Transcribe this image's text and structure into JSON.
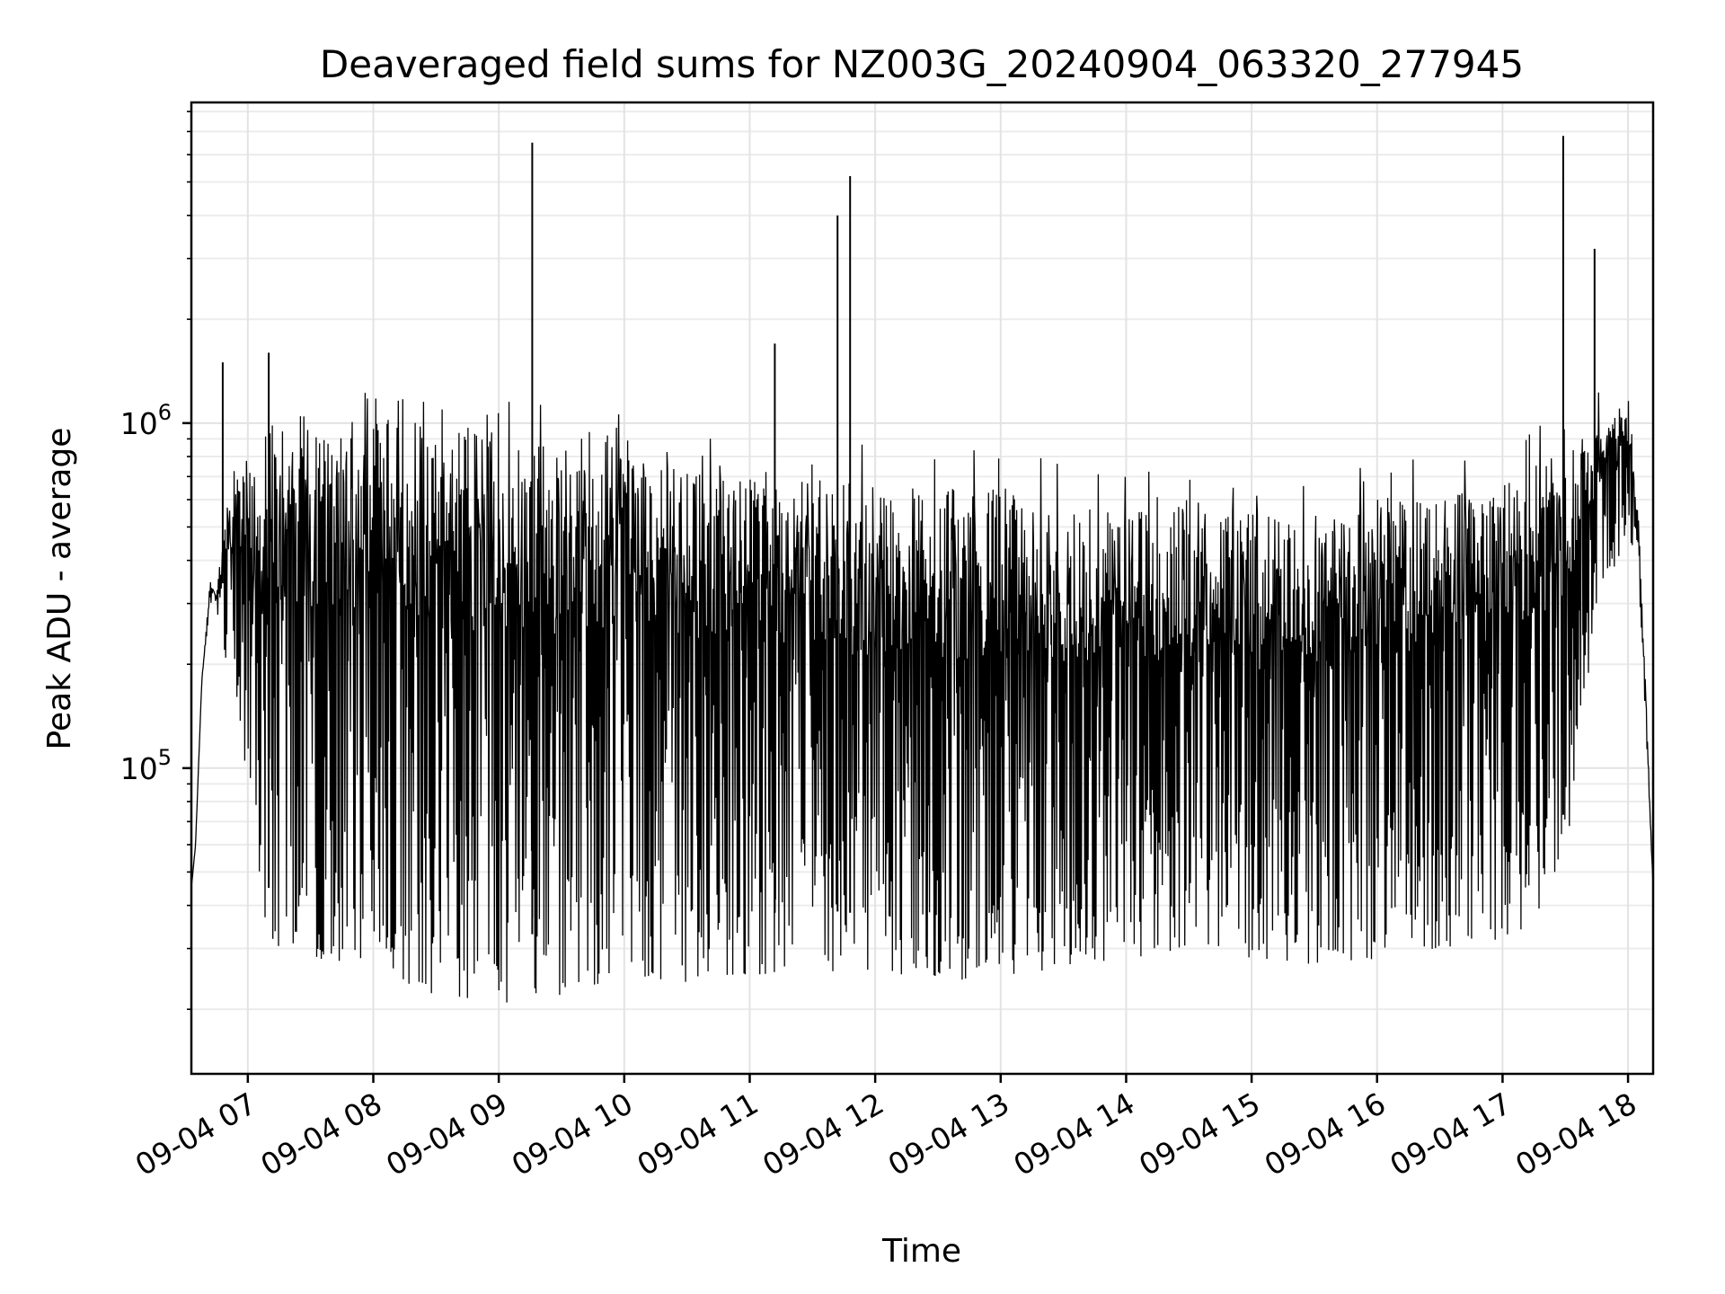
{
  "chart_data": {
    "type": "line",
    "title": "Deaveraged field sums for NZ003G_20240904_063320_277945",
    "xlabel": "Time",
    "ylabel": "Peak ADU - average",
    "yscale": "log",
    "ylim": [
      13000,
      8500000
    ],
    "xlim": [
      "09-04 06:33",
      "09-04 18:12"
    ],
    "x_ticks": [
      "09-04 07",
      "09-04 08",
      "09-04 09",
      "09-04 10",
      "09-04 11",
      "09-04 12",
      "09-04 13",
      "09-04 14",
      "09-04 15",
      "09-04 16",
      "09-04 17",
      "09-04 18"
    ],
    "y_ticks": [
      {
        "base": "10",
        "exp": "5",
        "value": 100000
      },
      {
        "base": "10",
        "exp": "6",
        "value": 1000000
      }
    ],
    "grid": true,
    "line_color": "#000000",
    "series": [
      {
        "name": "",
        "x": [
          "09-04 06:33",
          "09-04 06:35",
          "09-04 06:38",
          "09-04 06:42",
          "09-04 06:45",
          "09-04 06:50",
          "09-04 06:55",
          "09-04 07:00",
          "09-04 07:05",
          "09-04 07:10",
          "09-04 07:15",
          "09-04 07:20",
          "09-04 07:25",
          "09-04 07:30",
          "09-04 07:40",
          "09-04 08:00",
          "09-04 08:30",
          "09-04 08:55",
          "09-04 09:00",
          "09-04 09:05",
          "09-04 09:15",
          "09-04 09:30",
          "09-04 10:00",
          "09-04 10:30",
          "09-04 11:00",
          "09-04 11:30",
          "09-04 12:00",
          "09-04 12:30",
          "09-04 13:00",
          "09-04 13:30",
          "09-04 14:00",
          "09-04 14:30",
          "09-04 15:00",
          "09-04 15:30",
          "09-04 16:00",
          "09-04 16:30",
          "09-04 17:00",
          "09-04 17:15",
          "09-04 17:30",
          "09-04 17:45",
          "09-04 17:55",
          "09-04 18:00",
          "09-04 18:05",
          "09-04 18:08",
          "09-04 18:12"
        ],
        "values": [
          45000,
          60000,
          180000,
          350000,
          320000,
          600000,
          750000,
          900000,
          600000,
          1000000,
          1100000,
          900000,
          1100000,
          1000000,
          1000000,
          1050000,
          1000000,
          950000,
          1000000,
          900000,
          950000,
          850000,
          900000,
          800000,
          750000,
          700000,
          650000,
          650000,
          650000,
          600000,
          550000,
          600000,
          550000,
          500000,
          600000,
          650000,
          700000,
          750000,
          850000,
          950000,
          1100000,
          1200000,
          550000,
          200000,
          45000
        ],
        "low_envelope": [
          45000,
          60000,
          180000,
          300000,
          280000,
          200000,
          150000,
          90000,
          50000,
          30000,
          30000,
          30000,
          30000,
          28000,
          28000,
          26000,
          22000,
          20000,
          18000,
          20000,
          22000,
          22000,
          25000,
          24000,
          25000,
          26000,
          25000,
          24000,
          25000,
          26000,
          28000,
          30000,
          28000,
          27000,
          28000,
          30000,
          32000,
          35000,
          50000,
          300000,
          400000,
          500000,
          350000,
          150000,
          45000
        ],
        "spikes": [
          {
            "x": "09-04 09:16",
            "value": 6500000
          },
          {
            "x": "09-04 11:42",
            "value": 4000000
          },
          {
            "x": "09-04 11:48",
            "value": 5200000
          },
          {
            "x": "09-04 11:12",
            "value": 1700000
          },
          {
            "x": "09-04 17:29",
            "value": 6800000
          },
          {
            "x": "09-04 17:44",
            "value": 3200000
          },
          {
            "x": "09-04 06:48",
            "value": 1500000
          },
          {
            "x": "09-04 07:10",
            "value": 1600000
          }
        ]
      }
    ]
  }
}
